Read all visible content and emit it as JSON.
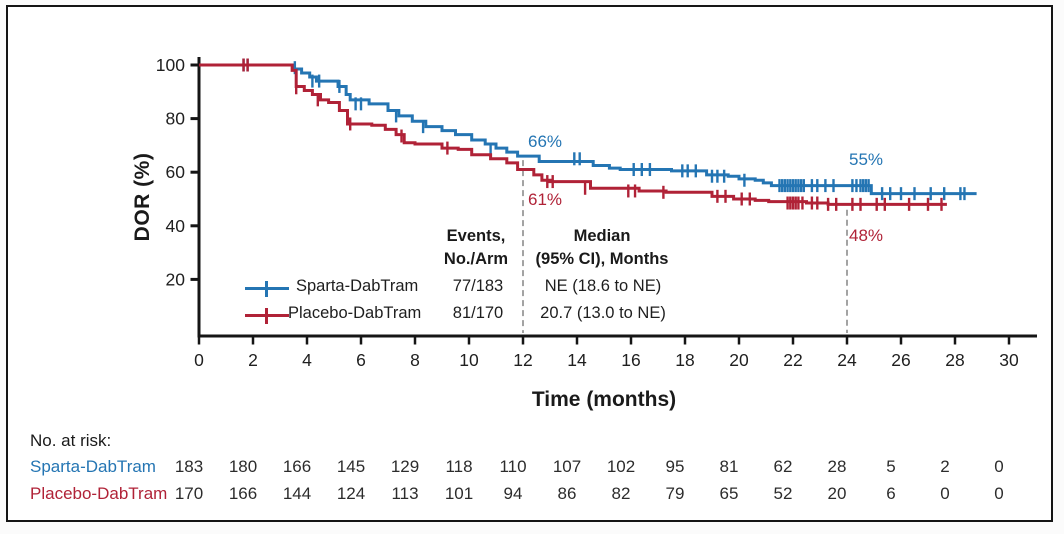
{
  "chart_data": {
    "type": "line",
    "subtype": "kaplan-meier-step",
    "xlabel": "Time (months)",
    "ylabel": "DOR (%)",
    "xlim": [
      0,
      30
    ],
    "ylim": [
      0,
      100
    ],
    "x_ticks": [
      0,
      2,
      4,
      6,
      8,
      10,
      12,
      14,
      16,
      18,
      20,
      22,
      24,
      26,
      28,
      30
    ],
    "y_ticks": [
      20,
      40,
      60,
      80,
      100
    ],
    "grid": false,
    "axis_color": "#151515",
    "reference_line_color": "#999999",
    "series": [
      {
        "name": "Sparta-DabTram",
        "color": "#2475b3",
        "events_label": "77/183",
        "median_label": "NE (18.6 to NE)",
        "end_month": 28.8,
        "steps": [
          [
            0,
            100
          ],
          [
            3.5,
            98.5
          ],
          [
            3.8,
            97
          ],
          [
            4.1,
            95.5
          ],
          [
            4.35,
            94
          ],
          [
            5.15,
            92
          ],
          [
            5.45,
            89
          ],
          [
            5.6,
            87
          ],
          [
            6.3,
            85.5
          ],
          [
            7.0,
            83
          ],
          [
            7.4,
            81
          ],
          [
            7.9,
            79
          ],
          [
            8.4,
            77
          ],
          [
            9.0,
            75.5
          ],
          [
            9.5,
            74
          ],
          [
            10.1,
            72
          ],
          [
            10.6,
            70.5
          ],
          [
            11.0,
            69
          ],
          [
            11.4,
            67.5
          ],
          [
            11.8,
            66
          ],
          [
            12.6,
            64
          ],
          [
            14.6,
            62.5
          ],
          [
            15.2,
            61.5
          ],
          [
            15.6,
            61
          ],
          [
            17.5,
            60.5
          ],
          [
            18.8,
            59
          ],
          [
            19.6,
            58.5
          ],
          [
            20.0,
            57.5
          ],
          [
            20.6,
            57
          ],
          [
            20.9,
            56
          ],
          [
            21.2,
            55
          ],
          [
            24.9,
            52
          ]
        ],
        "censors": [
          [
            1.65,
            100
          ],
          [
            1.8,
            100
          ],
          [
            3.55,
            99
          ],
          [
            4.2,
            94
          ],
          [
            4.45,
            94
          ],
          [
            5.2,
            92
          ],
          [
            5.8,
            85.5
          ],
          [
            6.0,
            85.5
          ],
          [
            7.3,
            81
          ],
          [
            8.3,
            77
          ],
          [
            10.8,
            68.5
          ],
          [
            13.9,
            65
          ],
          [
            14.1,
            65
          ],
          [
            16.1,
            61
          ],
          [
            16.4,
            61
          ],
          [
            16.7,
            61
          ],
          [
            17.9,
            60.5
          ],
          [
            18.1,
            60.5
          ],
          [
            18.4,
            60.5
          ],
          [
            19.0,
            58.5
          ],
          [
            19.2,
            58.5
          ],
          [
            19.45,
            58.5
          ],
          [
            20.2,
            57
          ],
          [
            21.5,
            55
          ],
          [
            21.6,
            55
          ],
          [
            21.7,
            55
          ],
          [
            21.8,
            55
          ],
          [
            21.9,
            55
          ],
          [
            22.0,
            55
          ],
          [
            22.1,
            55
          ],
          [
            22.2,
            55
          ],
          [
            22.3,
            55
          ],
          [
            22.4,
            55
          ],
          [
            22.7,
            55
          ],
          [
            22.9,
            55
          ],
          [
            23.2,
            55
          ],
          [
            23.5,
            55
          ],
          [
            24.2,
            55
          ],
          [
            24.35,
            55
          ],
          [
            24.5,
            55
          ],
          [
            24.6,
            55
          ],
          [
            24.7,
            55
          ],
          [
            24.8,
            55
          ],
          [
            25.3,
            52
          ],
          [
            25.6,
            52
          ],
          [
            26.0,
            52
          ],
          [
            26.5,
            52
          ],
          [
            27.1,
            52
          ],
          [
            27.6,
            52
          ],
          [
            28.2,
            52
          ],
          [
            28.35,
            52
          ]
        ]
      },
      {
        "name": "Placebo-DabTram",
        "color": "#b02237",
        "events_label": "81/170",
        "median_label": "20.7 (13.0 to NE)",
        "end_month": 27.7,
        "steps": [
          [
            0,
            100
          ],
          [
            3.45,
            98
          ],
          [
            3.6,
            92
          ],
          [
            3.9,
            90.5
          ],
          [
            4.2,
            89
          ],
          [
            4.5,
            87
          ],
          [
            4.8,
            86
          ],
          [
            5.2,
            83
          ],
          [
            5.5,
            78
          ],
          [
            6.4,
            77.5
          ],
          [
            6.9,
            76
          ],
          [
            7.3,
            74
          ],
          [
            7.6,
            71
          ],
          [
            8.0,
            70.5
          ],
          [
            9.0,
            69
          ],
          [
            9.6,
            68.5
          ],
          [
            10.1,
            66.5
          ],
          [
            10.8,
            65
          ],
          [
            11.4,
            63.5
          ],
          [
            11.8,
            61
          ],
          [
            12.4,
            59
          ],
          [
            12.7,
            57
          ],
          [
            13.0,
            56.5
          ],
          [
            14.5,
            54
          ],
          [
            16.3,
            53
          ],
          [
            17.3,
            52.5
          ],
          [
            19.0,
            51
          ],
          [
            19.8,
            50
          ],
          [
            20.6,
            49.5
          ],
          [
            21.1,
            49
          ],
          [
            22.5,
            48.5
          ],
          [
            23.3,
            48
          ]
        ],
        "censors": [
          [
            1.65,
            100
          ],
          [
            1.8,
            100
          ],
          [
            3.6,
            91.5
          ],
          [
            4.4,
            87
          ],
          [
            5.6,
            78
          ],
          [
            7.5,
            73.5
          ],
          [
            9.2,
            69
          ],
          [
            12.9,
            56.5
          ],
          [
            13.1,
            56.5
          ],
          [
            14.3,
            54
          ],
          [
            15.9,
            53
          ],
          [
            16.15,
            53
          ],
          [
            17.2,
            52.5
          ],
          [
            19.2,
            51
          ],
          [
            19.5,
            51
          ],
          [
            20.1,
            50
          ],
          [
            20.4,
            50
          ],
          [
            21.8,
            48.5
          ],
          [
            21.9,
            48.5
          ],
          [
            22.0,
            48.5
          ],
          [
            22.1,
            48.5
          ],
          [
            22.2,
            48.5
          ],
          [
            22.35,
            48.5
          ],
          [
            22.7,
            48.5
          ],
          [
            22.9,
            48.5
          ],
          [
            23.3,
            48
          ],
          [
            23.6,
            48
          ],
          [
            24.2,
            48
          ],
          [
            24.5,
            48
          ],
          [
            25.1,
            48
          ],
          [
            25.4,
            48
          ],
          [
            26.3,
            48
          ],
          [
            27.0,
            48
          ],
          [
            27.5,
            48
          ]
        ]
      }
    ],
    "reference_lines": [
      {
        "x": 12,
        "y_top": 64.5
      },
      {
        "x": 24,
        "y_top": 46
      }
    ],
    "annotations": [
      {
        "label": "66%",
        "series": "Sparta-DabTram",
        "x": 12,
        "y": 66
      },
      {
        "label": "61%",
        "series": "Placebo-DabTram",
        "x": 12,
        "y": 61
      },
      {
        "label": "55%",
        "series": "Sparta-DabTram",
        "x": 24,
        "y": 55
      },
      {
        "label": "48%",
        "series": "Placebo-DabTram",
        "x": 24,
        "y": 48
      }
    ],
    "legend": {
      "events_header": [
        "Events,",
        "No./Arm"
      ],
      "median_header": [
        "Median",
        "(95% CI), Months"
      ]
    },
    "risk_table": {
      "title": "No. at risk:",
      "rows": [
        {
          "name": "Sparta-DabTram",
          "counts": [
            183,
            180,
            166,
            145,
            129,
            118,
            110,
            107,
            102,
            95,
            81,
            62,
            28,
            5,
            2,
            0
          ]
        },
        {
          "name": "Placebo-DabTram",
          "counts": [
            170,
            166,
            144,
            124,
            113,
            101,
            94,
            86,
            82,
            79,
            65,
            52,
            20,
            6,
            0,
            0
          ]
        }
      ]
    }
  }
}
